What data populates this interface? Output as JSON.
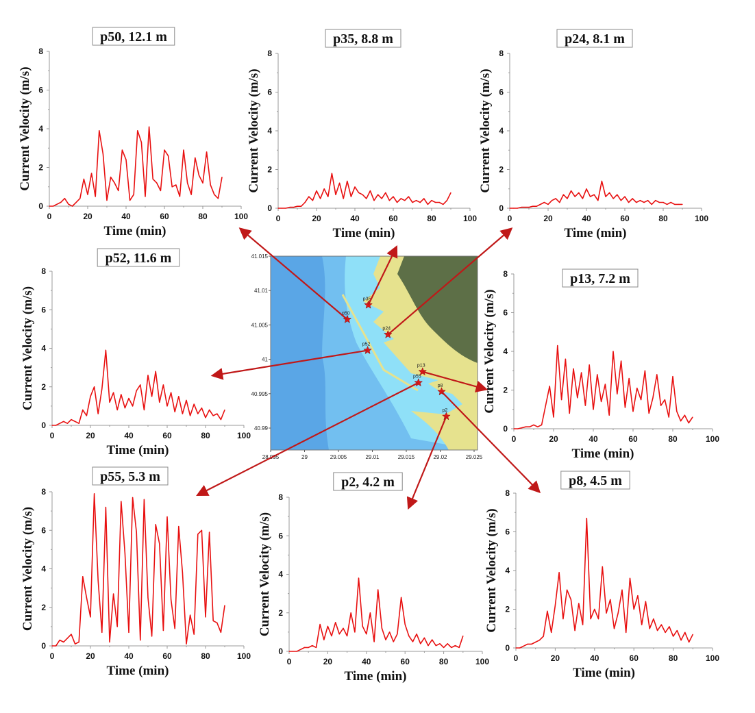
{
  "chart_data": [
    {
      "type": "line",
      "title": "p50, 12.1 m",
      "xlabel": "Time (min)",
      "ylabel": "Current Velocity (m/s)",
      "xlim": [
        0,
        100
      ],
      "ylim": [
        0,
        8
      ],
      "xticks": [
        "0",
        "20",
        "40",
        "60",
        "80",
        "100"
      ],
      "yticks": [
        "0",
        "2",
        "4",
        "6",
        "8"
      ],
      "color": "#e81010",
      "x": [
        0,
        2,
        4,
        6,
        8,
        10,
        12,
        14,
        16,
        18,
        20,
        22,
        24,
        26,
        28,
        30,
        32,
        34,
        36,
        38,
        40,
        42,
        44,
        46,
        48,
        50,
        52,
        54,
        56,
        58,
        60,
        62,
        64,
        66,
        68,
        70,
        72,
        74,
        76,
        78,
        80,
        82,
        84,
        86,
        88,
        90
      ],
      "y": [
        0,
        0,
        0.1,
        0.2,
        0.4,
        0.1,
        0,
        0.2,
        0.4,
        1.4,
        0.6,
        1.7,
        0.5,
        3.9,
        2.7,
        0.3,
        1.5,
        1.2,
        0.8,
        2.9,
        2.4,
        0.3,
        0.6,
        3.9,
        3.3,
        0.5,
        4.1,
        1.4,
        1.2,
        0.8,
        2.9,
        2.6,
        1.0,
        1.1,
        0.5,
        2.9,
        1.2,
        0.6,
        2.5,
        1.6,
        1.2,
        2.8,
        1.1,
        0.6,
        0.4,
        1.5
      ]
    },
    {
      "type": "line",
      "title": "p35, 8.8 m",
      "xlabel": "Time (min)",
      "ylabel": "Current Velocity (m/s)",
      "xlim": [
        0,
        100
      ],
      "ylim": [
        0,
        8
      ],
      "xticks": [
        "0",
        "20",
        "40",
        "60",
        "80",
        "100"
      ],
      "yticks": [
        "0",
        "2",
        "4",
        "6",
        "8"
      ],
      "color": "#e81010",
      "x": [
        0,
        2,
        4,
        6,
        8,
        10,
        12,
        14,
        16,
        18,
        20,
        22,
        24,
        26,
        28,
        30,
        32,
        34,
        36,
        38,
        40,
        42,
        44,
        46,
        48,
        50,
        52,
        54,
        56,
        58,
        60,
        62,
        64,
        66,
        68,
        70,
        72,
        74,
        76,
        78,
        80,
        82,
        84,
        86,
        88,
        90
      ],
      "y": [
        0,
        0,
        0,
        0.05,
        0.05,
        0.1,
        0.1,
        0.3,
        0.6,
        0.4,
        0.9,
        0.5,
        1.0,
        0.6,
        1.8,
        0.7,
        1.3,
        0.5,
        1.4,
        0.6,
        1.1,
        0.8,
        0.7,
        0.5,
        0.9,
        0.4,
        0.7,
        0.5,
        0.8,
        0.4,
        0.6,
        0.3,
        0.5,
        0.4,
        0.6,
        0.3,
        0.4,
        0.3,
        0.5,
        0.2,
        0.4,
        0.3,
        0.3,
        0.2,
        0.4,
        0.8
      ]
    },
    {
      "type": "line",
      "title": "p24, 8.1 m",
      "xlabel": "Time (min)",
      "ylabel": "Current Velocity (m/s)",
      "xlim": [
        0,
        100
      ],
      "ylim": [
        0,
        8
      ],
      "xticks": [
        "0",
        "20",
        "40",
        "60",
        "80",
        "100"
      ],
      "yticks": [
        "0",
        "2",
        "4",
        "6",
        "8"
      ],
      "color": "#e81010",
      "x": [
        0,
        2,
        4,
        6,
        8,
        10,
        12,
        14,
        16,
        18,
        20,
        22,
        24,
        26,
        28,
        30,
        32,
        34,
        36,
        38,
        40,
        42,
        44,
        46,
        48,
        50,
        52,
        54,
        56,
        58,
        60,
        62,
        64,
        66,
        68,
        70,
        72,
        74,
        76,
        78,
        80,
        82,
        84,
        86,
        88,
        90
      ],
      "y": [
        0,
        0,
        0,
        0.05,
        0.05,
        0.05,
        0.1,
        0.1,
        0.2,
        0.3,
        0.2,
        0.4,
        0.5,
        0.3,
        0.7,
        0.5,
        0.9,
        0.6,
        0.8,
        0.5,
        1.0,
        0.6,
        0.7,
        0.4,
        1.4,
        0.6,
        0.8,
        0.5,
        0.7,
        0.4,
        0.6,
        0.3,
        0.5,
        0.3,
        0.4,
        0.3,
        0.4,
        0.2,
        0.4,
        0.3,
        0.3,
        0.2,
        0.3,
        0.2,
        0.2,
        0.2
      ]
    },
    {
      "type": "line",
      "title": "p52, 11.6 m",
      "xlabel": "Time (min)",
      "ylabel": "Current Velocity (m/s)",
      "xlim": [
        0,
        100
      ],
      "ylim": [
        0,
        8
      ],
      "xticks": [
        "0",
        "20",
        "40",
        "60",
        "80",
        "100"
      ],
      "yticks": [
        "0",
        "2",
        "4",
        "6",
        "8"
      ],
      "color": "#e81010",
      "x": [
        0,
        2,
        4,
        6,
        8,
        10,
        12,
        14,
        16,
        18,
        20,
        22,
        24,
        26,
        28,
        30,
        32,
        34,
        36,
        38,
        40,
        42,
        44,
        46,
        48,
        50,
        52,
        54,
        56,
        58,
        60,
        62,
        64,
        66,
        68,
        70,
        72,
        74,
        76,
        78,
        80,
        82,
        84,
        86,
        88,
        90
      ],
      "y": [
        0,
        0,
        0.1,
        0.2,
        0.1,
        0.3,
        0.2,
        0.1,
        0.8,
        0.5,
        1.5,
        2.0,
        0.6,
        1.9,
        3.9,
        1.2,
        1.7,
        0.8,
        1.6,
        0.9,
        1.4,
        1.0,
        1.8,
        2.1,
        0.8,
        2.6,
        1.5,
        2.8,
        1.2,
        2.1,
        1.0,
        1.7,
        0.7,
        1.5,
        0.6,
        1.3,
        0.5,
        1.1,
        0.6,
        0.9,
        0.4,
        0.8,
        0.5,
        0.6,
        0.3,
        0.8
      ]
    },
    {
      "type": "line",
      "title": "p13, 7.2 m",
      "xlabel": "Time (min)",
      "ylabel": "Current Velocity (m/s)",
      "xlim": [
        0,
        100
      ],
      "ylim": [
        0,
        8
      ],
      "xticks": [
        "0",
        "20",
        "40",
        "60",
        "80",
        "100"
      ],
      "yticks": [
        "0",
        "2",
        "4",
        "6",
        "8"
      ],
      "color": "#e81010",
      "x": [
        0,
        2,
        4,
        6,
        8,
        10,
        12,
        14,
        16,
        18,
        20,
        22,
        24,
        26,
        28,
        30,
        32,
        34,
        36,
        38,
        40,
        42,
        44,
        46,
        48,
        50,
        52,
        54,
        56,
        58,
        60,
        62,
        64,
        66,
        68,
        70,
        72,
        74,
        76,
        78,
        80,
        82,
        84,
        86,
        88,
        90
      ],
      "y": [
        0,
        0,
        0.05,
        0.1,
        0.1,
        0.2,
        0.1,
        0.2,
        1.2,
        2.2,
        0.6,
        4.3,
        1.5,
        3.6,
        0.8,
        3.1,
        1.6,
        2.9,
        1.2,
        3.3,
        1.0,
        2.8,
        1.4,
        2.3,
        0.7,
        4.0,
        1.8,
        3.5,
        1.1,
        2.6,
        0.9,
        2.1,
        1.5,
        3.0,
        0.8,
        1.6,
        2.8,
        1.2,
        1.5,
        0.6,
        2.7,
        0.9,
        0.4,
        0.7,
        0.3,
        0.6
      ]
    },
    {
      "type": "line",
      "title": "p55, 5.3 m",
      "xlabel": "Time (min)",
      "ylabel": "Current Velocity (m/s)",
      "xlim": [
        0,
        100
      ],
      "ylim": [
        0,
        8
      ],
      "xticks": [
        "0",
        "20",
        "40",
        "60",
        "80",
        "100"
      ],
      "yticks": [
        "0",
        "2",
        "4",
        "6",
        "8"
      ],
      "color": "#e81010",
      "x": [
        0,
        2,
        4,
        6,
        8,
        10,
        12,
        14,
        16,
        18,
        20,
        22,
        24,
        26,
        28,
        30,
        32,
        34,
        36,
        38,
        40,
        42,
        44,
        46,
        48,
        50,
        52,
        54,
        56,
        58,
        60,
        62,
        64,
        66,
        68,
        70,
        72,
        74,
        76,
        78,
        80,
        82,
        84,
        86,
        88,
        90
      ],
      "y": [
        0,
        0,
        0.3,
        0.2,
        0.4,
        0.6,
        0.1,
        0.2,
        3.6,
        2.5,
        1.5,
        7.9,
        3.4,
        0.7,
        7.2,
        0.2,
        2.7,
        1.0,
        7.5,
        4.8,
        0.7,
        7.7,
        5.9,
        0.3,
        7.6,
        2.5,
        0.5,
        6.3,
        5.3,
        0.8,
        6.7,
        2.4,
        0.9,
        6.2,
        3.8,
        0.1,
        1.6,
        0.6,
        5.8,
        6.0,
        1.5,
        5.9,
        1.3,
        1.2,
        0.7,
        2.1
      ]
    },
    {
      "type": "line",
      "title": "p2, 4.2 m",
      "xlabel": "Time (min)",
      "ylabel": "Current Velocity (m/s)",
      "xlim": [
        0,
        100
      ],
      "ylim": [
        0,
        8
      ],
      "xticks": [
        "0",
        "20",
        "40",
        "60",
        "80",
        "100"
      ],
      "yticks": [
        "0",
        "2",
        "4",
        "6",
        "8"
      ],
      "color": "#e81010",
      "x": [
        0,
        2,
        4,
        6,
        8,
        10,
        12,
        14,
        16,
        18,
        20,
        22,
        24,
        26,
        28,
        30,
        32,
        34,
        36,
        38,
        40,
        42,
        44,
        46,
        48,
        50,
        52,
        54,
        56,
        58,
        60,
        62,
        64,
        66,
        68,
        70,
        72,
        74,
        76,
        78,
        80,
        82,
        84,
        86,
        88,
        90
      ],
      "y": [
        0,
        0,
        0,
        0.1,
        0.2,
        0.2,
        0.3,
        0.2,
        1.4,
        0.6,
        1.3,
        0.8,
        1.5,
        0.9,
        1.2,
        0.8,
        2.0,
        1.0,
        3.8,
        1.3,
        0.9,
        2.0,
        0.5,
        3.2,
        1.2,
        0.6,
        1.0,
        0.5,
        0.9,
        2.8,
        1.4,
        0.8,
        0.5,
        0.9,
        0.4,
        0.7,
        0.3,
        0.6,
        0.3,
        0.4,
        0.2,
        0.4,
        0.2,
        0.3,
        0.2,
        0.8
      ]
    },
    {
      "type": "line",
      "title": "p8, 4.5 m",
      "xlabel": "Time (min)",
      "ylabel": "Current Velocity (m/s)",
      "xlim": [
        0,
        100
      ],
      "ylim": [
        0,
        8
      ],
      "xticks": [
        "0",
        "20",
        "40",
        "60",
        "80",
        "100"
      ],
      "yticks": [
        "0",
        "2",
        "4",
        "6",
        "8"
      ],
      "color": "#e81010",
      "x": [
        0,
        2,
        4,
        6,
        8,
        10,
        12,
        14,
        16,
        18,
        20,
        22,
        24,
        26,
        28,
        30,
        32,
        34,
        36,
        38,
        40,
        42,
        44,
        46,
        48,
        50,
        52,
        54,
        56,
        58,
        60,
        62,
        64,
        66,
        68,
        70,
        72,
        74,
        76,
        78,
        80,
        82,
        84,
        86,
        88,
        90
      ],
      "y": [
        0,
        0,
        0.1,
        0.2,
        0.2,
        0.3,
        0.4,
        0.6,
        1.9,
        0.8,
        2.2,
        3.9,
        1.5,
        3.0,
        2.5,
        0.9,
        2.3,
        1.2,
        6.7,
        1.5,
        2.0,
        1.5,
        4.2,
        1.8,
        2.5,
        1.0,
        1.8,
        3.0,
        0.8,
        3.6,
        2.0,
        2.7,
        1.2,
        2.4,
        1.0,
        1.5,
        0.9,
        1.2,
        0.8,
        1.1,
        0.6,
        0.9,
        0.4,
        0.8,
        0.3,
        0.7
      ]
    }
  ],
  "map": {
    "lon_ticks": [
      "28.995",
      "29",
      "29.005",
      "29.01",
      "29.015",
      "29.02",
      "29.025"
    ],
    "lat_ticks": [
      "40.99",
      "40.995",
      "41",
      "41.005",
      "41.01",
      "41.015"
    ],
    "stations": [
      {
        "label": "p50",
        "lon": 29.0063,
        "lat": 41.0058
      },
      {
        "label": "p35",
        "lon": 29.0094,
        "lat": 41.0079
      },
      {
        "label": "p24",
        "lon": 29.0123,
        "lat": 41.0036
      },
      {
        "label": "p52",
        "lon": 29.0093,
        "lat": 41.0013
      },
      {
        "label": "p13",
        "lon": 29.0174,
        "lat": 40.9982
      },
      {
        "label": "p55",
        "lon": 29.0168,
        "lat": 40.9966
      },
      {
        "label": "p8",
        "lon": 29.0202,
        "lat": 40.9953
      },
      {
        "label": "p2",
        "lon": 29.0209,
        "lat": 40.9917
      }
    ],
    "colors": {
      "deep": "#5aa6e6",
      "mid": "#72bff0",
      "shallow": "#8fe0f8",
      "land": "#e6e28e",
      "hill": "#5d6f47",
      "marker": "#e01818",
      "arrow": "#c01818"
    }
  }
}
